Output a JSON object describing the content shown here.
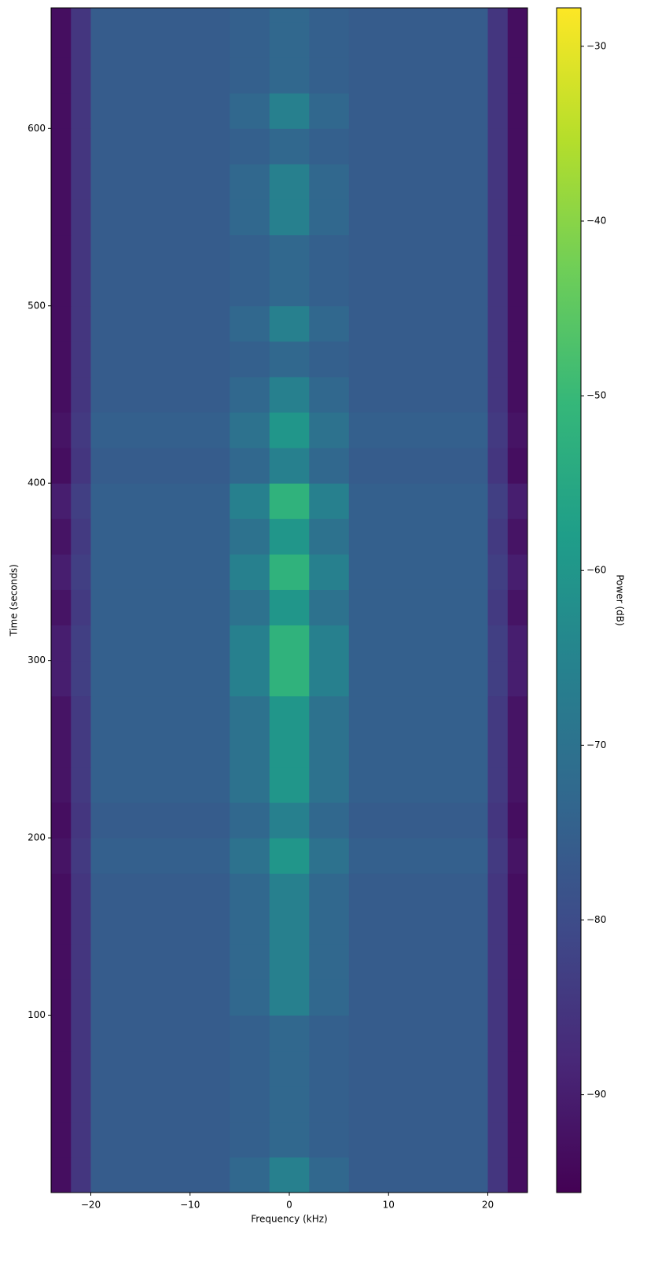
{
  "chart_data": {
    "type": "heatmap",
    "colormap": "viridis",
    "xlabel": "Frequency (kHz)",
    "ylabel": "Time (seconds)",
    "colorbar_label": "Power (dB)",
    "xlim": [
      -24,
      24
    ],
    "ylim": [
      0,
      668
    ],
    "clim": [
      -95.6,
      -27.8
    ],
    "x_edges": [
      -24,
      -22,
      -20,
      -6,
      -2,
      2,
      6,
      20,
      22,
      24
    ],
    "y_edges": [
      0,
      20,
      40,
      60,
      80,
      100,
      120,
      140,
      160,
      180,
      200,
      220,
      240,
      260,
      280,
      300,
      320,
      340,
      360,
      380,
      400,
      420,
      440,
      460,
      480,
      500,
      520,
      540,
      560,
      580,
      600,
      620,
      640,
      660,
      668
    ],
    "values": [
      [
        -93,
        -85,
        -76,
        -73,
        -66,
        -73,
        -76,
        -85,
        -93
      ],
      [
        -93,
        -85,
        -76,
        -75,
        -73,
        -75,
        -76,
        -85,
        -93
      ],
      [
        -93,
        -85,
        -76,
        -75,
        -73,
        -75,
        -76,
        -85,
        -93
      ],
      [
        -93,
        -85,
        -76,
        -75,
        -73,
        -75,
        -76,
        -85,
        -93
      ],
      [
        -93,
        -85,
        -76,
        -75,
        -73,
        -75,
        -76,
        -85,
        -93
      ],
      [
        -93,
        -85,
        -76,
        -73,
        -66,
        -73,
        -76,
        -85,
        -93
      ],
      [
        -93,
        -85,
        -76,
        -73,
        -66,
        -73,
        -76,
        -85,
        -93
      ],
      [
        -93,
        -85,
        -76,
        -73,
        -66,
        -73,
        -76,
        -85,
        -93
      ],
      [
        -93,
        -85,
        -76,
        -73,
        -66,
        -73,
        -76,
        -85,
        -93
      ],
      [
        -92,
        -84,
        -75,
        -70,
        -60,
        -70,
        -75,
        -84,
        -92
      ],
      [
        -93,
        -85,
        -76,
        -73,
        -66,
        -73,
        -76,
        -85,
        -93
      ],
      [
        -92,
        -84,
        -75,
        -70,
        -60,
        -70,
        -75,
        -84,
        -92
      ],
      [
        -92,
        -84,
        -75,
        -70,
        -60,
        -70,
        -75,
        -84,
        -92
      ],
      [
        -92,
        -84,
        -75,
        -70,
        -60,
        -70,
        -75,
        -84,
        -92
      ],
      [
        -90,
        -83,
        -75,
        -66,
        -52,
        -66,
        -75,
        -83,
        -90
      ],
      [
        -90,
        -83,
        -75,
        -66,
        -52,
        -66,
        -75,
        -83,
        -90
      ],
      [
        -92,
        -84,
        -75,
        -70,
        -60,
        -70,
        -75,
        -84,
        -92
      ],
      [
        -90,
        -83,
        -75,
        -66,
        -52,
        -66,
        -75,
        -83,
        -90
      ],
      [
        -92,
        -84,
        -75,
        -70,
        -60,
        -70,
        -75,
        -84,
        -92
      ],
      [
        -90,
        -83,
        -75,
        -66,
        -52,
        -66,
        -75,
        -83,
        -90
      ],
      [
        -93,
        -85,
        -76,
        -73,
        -66,
        -73,
        -76,
        -85,
        -93
      ],
      [
        -92,
        -84,
        -75,
        -70,
        -60,
        -70,
        -75,
        -84,
        -92
      ],
      [
        -93,
        -85,
        -76,
        -73,
        -66,
        -73,
        -76,
        -85,
        -93
      ],
      [
        -93,
        -85,
        -76,
        -75,
        -73,
        -75,
        -76,
        -85,
        -93
      ],
      [
        -93,
        -85,
        -76,
        -73,
        -66,
        -73,
        -76,
        -85,
        -93
      ],
      [
        -93,
        -85,
        -76,
        -75,
        -73,
        -75,
        -76,
        -85,
        -93
      ],
      [
        -93,
        -85,
        -76,
        -75,
        -73,
        -75,
        -76,
        -85,
        -93
      ],
      [
        -93,
        -85,
        -76,
        -73,
        -66,
        -73,
        -76,
        -85,
        -93
      ],
      [
        -93,
        -85,
        -76,
        -73,
        -66,
        -73,
        -76,
        -85,
        -93
      ],
      [
        -93,
        -85,
        -76,
        -75,
        -73,
        -75,
        -76,
        -85,
        -93
      ],
      [
        -93,
        -85,
        -76,
        -73,
        -66,
        -73,
        -76,
        -85,
        -93
      ],
      [
        -93,
        -85,
        -76,
        -75,
        -73,
        -75,
        -76,
        -85,
        -93
      ],
      [
        -93,
        -85,
        -76,
        -75,
        -73,
        -75,
        -76,
        -85,
        -93
      ],
      [
        -93,
        -85,
        -76,
        -75,
        -73,
        -75,
        -76,
        -85,
        -93
      ]
    ],
    "xticks": [
      {
        "value": -20,
        "label": "−20"
      },
      {
        "value": -10,
        "label": "−10"
      },
      0,
      10,
      20
    ],
    "yticks": [
      100,
      200,
      300,
      400,
      500,
      600
    ],
    "cticks": [
      {
        "value": -30,
        "label": "−30"
      },
      {
        "value": -40,
        "label": "−40"
      },
      {
        "value": -50,
        "label": "−50"
      },
      {
        "value": -60,
        "label": "−60"
      },
      {
        "value": -70,
        "label": "−70"
      },
      {
        "value": -80,
        "label": "−80"
      },
      {
        "value": -90,
        "label": "−90"
      }
    ]
  }
}
